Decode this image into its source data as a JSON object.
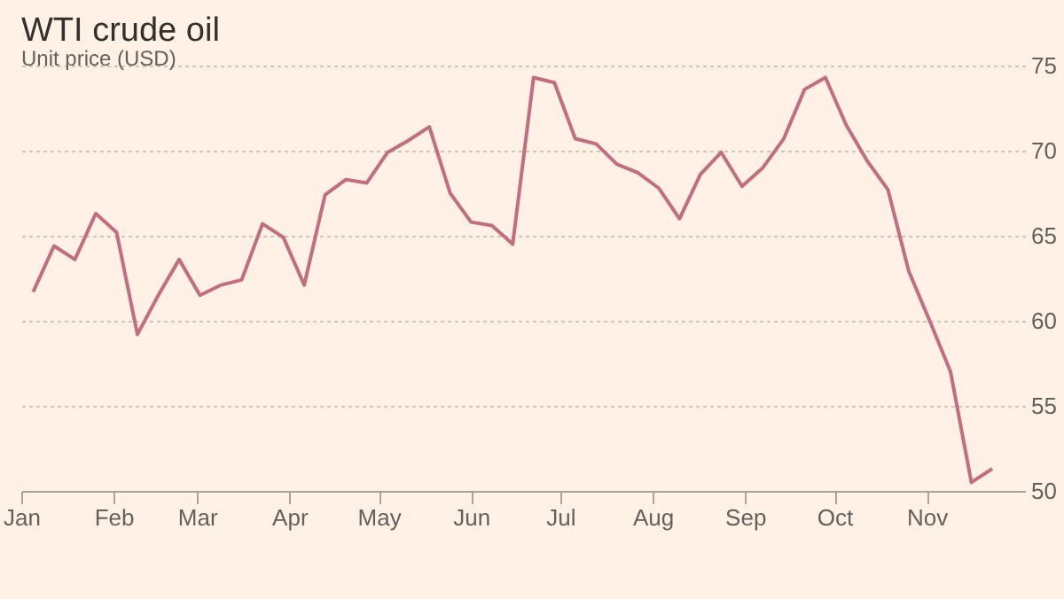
{
  "chart_data": {
    "type": "line",
    "title": "WTI crude oil",
    "subtitle": "Unit price (USD)",
    "x": [
      "--01-05",
      "--01-12",
      "--01-19",
      "--01-26",
      "--02-02",
      "--02-09",
      "--02-16",
      "--02-23",
      "--03-02",
      "--03-09",
      "--03-16",
      "--03-23",
      "--03-30",
      "--04-06",
      "--04-13",
      "--04-20",
      "--04-27",
      "--05-04",
      "--05-11",
      "--05-18",
      "--05-25",
      "--06-01",
      "--06-08",
      "--06-15",
      "--06-22",
      "--06-29",
      "--07-06",
      "--07-13",
      "--07-20",
      "--07-27",
      "--08-03",
      "--08-10",
      "--08-17",
      "--08-24",
      "--08-31",
      "--09-07",
      "--09-14",
      "--09-21",
      "--09-28",
      "--10-05",
      "--10-12",
      "--10-19",
      "--10-26",
      "--11-02",
      "--11-09",
      "--11-16",
      "--11-23"
    ],
    "series": [
      {
        "color": "#c36e80",
        "values": [
          61.7,
          64.4,
          63.6,
          66.3,
          65.2,
          59.2,
          61.5,
          63.6,
          61.5,
          62.1,
          62.4,
          65.7,
          64.9,
          62.1,
          67.4,
          68.3,
          68.1,
          69.9,
          70.6,
          71.4,
          67.5,
          65.8,
          65.6,
          64.5,
          74.3,
          74.0,
          70.7,
          70.4,
          69.2,
          68.7,
          67.8,
          66.0,
          68.6,
          69.9,
          67.9,
          69.0,
          70.7,
          73.6,
          74.3,
          71.5,
          69.4,
          67.7,
          62.9,
          60.0,
          57.0,
          50.5,
          51.3
        ]
      }
    ],
    "xlim": [
      "--01-01",
      "--12-04"
    ],
    "xticks": [
      {
        "value": "--01-01",
        "label": "Jan"
      },
      {
        "value": "--02-01",
        "label": "Feb"
      },
      {
        "value": "--03-01",
        "label": "Mar"
      },
      {
        "value": "--04-01",
        "label": "Apr"
      },
      {
        "value": "--05-01",
        "label": "May"
      },
      {
        "value": "--06-01",
        "label": "Jun"
      },
      {
        "value": "--07-01",
        "label": "Jul"
      },
      {
        "value": "--08-01",
        "label": "Aug"
      },
      {
        "value": "--09-01",
        "label": "Sep"
      },
      {
        "value": "--10-01",
        "label": "Oct"
      },
      {
        "value": "--11-01",
        "label": "Nov"
      }
    ],
    "ylim": [
      50,
      75
    ],
    "yticks": [
      50,
      55,
      60,
      65,
      70,
      75
    ],
    "grid": "y"
  }
}
